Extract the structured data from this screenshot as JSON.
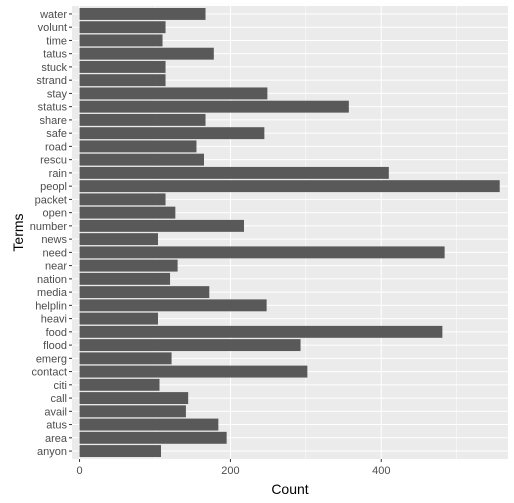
{
  "chart_data": {
    "type": "bar",
    "orientation": "horizontal",
    "xlabel": "Count",
    "ylabel": "Terms",
    "xlim": [
      -10,
      568
    ],
    "x_ticks": [
      0,
      200,
      400
    ],
    "grid": true,
    "colors": {
      "panel_bg": "#EBEBEB",
      "grid_major": "#FFFFFF",
      "bar": "#595959",
      "tick_text": "#4D4D4D",
      "axis_title": "#000000"
    },
    "categories": [
      "water",
      "volunt",
      "time",
      "tatus",
      "stuck",
      "strand",
      "stay",
      "status",
      "share",
      "safe",
      "road",
      "rescu",
      "rain",
      "peopl",
      "packet",
      "open",
      "number",
      "news",
      "need",
      "near",
      "nation",
      "media",
      "helplin",
      "heavi",
      "food",
      "flood",
      "emerg",
      "contact",
      "citi",
      "call",
      "avail",
      "atus",
      "area",
      "anyon"
    ],
    "values": [
      167,
      114,
      110,
      178,
      114,
      114,
      249,
      357,
      167,
      245,
      155,
      165,
      410,
      557,
      114,
      127,
      218,
      104,
      484,
      130,
      120,
      172,
      248,
      104,
      481,
      293,
      122,
      302,
      106,
      144,
      141,
      184,
      195,
      108
    ]
  }
}
